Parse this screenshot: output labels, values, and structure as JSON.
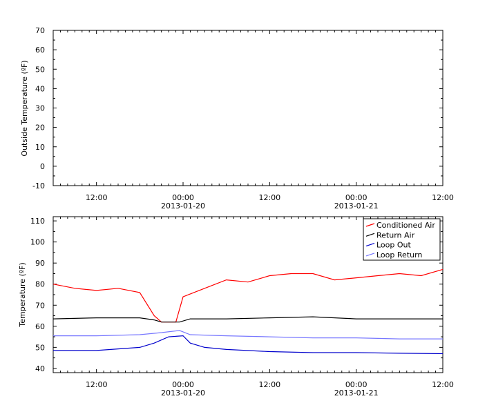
{
  "chart_data": [
    {
      "type": "line",
      "title": "",
      "xlabel": "",
      "ylabel": "Outside Temperature (ºF)",
      "ylim": [
        -10,
        70
      ],
      "yticks": [
        -10,
        0,
        10,
        20,
        30,
        40,
        50,
        60,
        70
      ],
      "xlim": [
        "2013-01-19 06:00",
        "2013-01-21 12:00"
      ],
      "xticks": [
        {
          "at": "2013-01-19 12:00",
          "label": "12:00",
          "sublabel": ""
        },
        {
          "at": "2013-01-20 00:00",
          "label": "00:00",
          "sublabel": "2013-01-20"
        },
        {
          "at": "2013-01-20 12:00",
          "label": "12:00",
          "sublabel": ""
        },
        {
          "at": "2013-01-21 00:00",
          "label": "00:00",
          "sublabel": "2013-01-21"
        },
        {
          "at": "2013-01-21 12:00",
          "label": "12:00",
          "sublabel": ""
        }
      ],
      "grid": false,
      "series": []
    },
    {
      "type": "line",
      "title": "",
      "xlabel": "",
      "ylabel": "Temperature (ºF)",
      "ylim": [
        38,
        112
      ],
      "yticks": [
        40,
        50,
        60,
        70,
        80,
        90,
        100,
        110
      ],
      "xlim": [
        "2013-01-19 06:00",
        "2013-01-21 12:00"
      ],
      "xticks": [
        {
          "at": "2013-01-19 12:00",
          "label": "12:00",
          "sublabel": ""
        },
        {
          "at": "2013-01-20 00:00",
          "label": "00:00",
          "sublabel": "2013-01-20"
        },
        {
          "at": "2013-01-20 12:00",
          "label": "12:00",
          "sublabel": ""
        },
        {
          "at": "2013-01-21 00:00",
          "label": "00:00",
          "sublabel": "2013-01-21"
        },
        {
          "at": "2013-01-21 12:00",
          "label": "12:00",
          "sublabel": ""
        }
      ],
      "grid": false,
      "legend_position": "top-right",
      "series": [
        {
          "name": "Conditioned Air",
          "color": "#ff0000",
          "points": [
            [
              "2013-01-19 06:00",
              80
            ],
            [
              "2013-01-19 09:00",
              78
            ],
            [
              "2013-01-19 12:00",
              77
            ],
            [
              "2013-01-19 15:00",
              78
            ],
            [
              "2013-01-19 18:00",
              76
            ],
            [
              "2013-01-19 20:00",
              65
            ],
            [
              "2013-01-19 21:00",
              62
            ],
            [
              "2013-01-19 23:00",
              62
            ],
            [
              "2013-01-20 00:00",
              74
            ],
            [
              "2013-01-20 03:00",
              78
            ],
            [
              "2013-01-20 06:00",
              82
            ],
            [
              "2013-01-20 09:00",
              81
            ],
            [
              "2013-01-20 12:00",
              84
            ],
            [
              "2013-01-20 15:00",
              85
            ],
            [
              "2013-01-20 18:00",
              85
            ],
            [
              "2013-01-20 21:00",
              82
            ],
            [
              "2013-01-21 00:00",
              83
            ],
            [
              "2013-01-21 03:00",
              84
            ],
            [
              "2013-01-21 06:00",
              85
            ],
            [
              "2013-01-21 09:00",
              84
            ],
            [
              "2013-01-21 12:00",
              87
            ]
          ]
        },
        {
          "name": "Return Air",
          "color": "#000000",
          "points": [
            [
              "2013-01-19 06:00",
              63.5
            ],
            [
              "2013-01-19 12:00",
              64
            ],
            [
              "2013-01-19 18:00",
              64
            ],
            [
              "2013-01-19 20:00",
              63
            ],
            [
              "2013-01-19 21:00",
              62
            ],
            [
              "2013-01-19 23:30",
              62
            ],
            [
              "2013-01-20 01:00",
              63.5
            ],
            [
              "2013-01-20 06:00",
              63.5
            ],
            [
              "2013-01-20 12:00",
              64
            ],
            [
              "2013-01-20 18:00",
              64.5
            ],
            [
              "2013-01-21 00:00",
              63.5
            ],
            [
              "2013-01-21 06:00",
              63.5
            ],
            [
              "2013-01-21 12:00",
              63.5
            ]
          ]
        },
        {
          "name": "Loop Out",
          "color": "#0000cc",
          "points": [
            [
              "2013-01-19 06:00",
              48.5
            ],
            [
              "2013-01-19 12:00",
              48.5
            ],
            [
              "2013-01-19 18:00",
              50
            ],
            [
              "2013-01-19 20:00",
              52
            ],
            [
              "2013-01-19 22:00",
              55
            ],
            [
              "2013-01-20 00:00",
              55.5
            ],
            [
              "2013-01-20 01:00",
              52
            ],
            [
              "2013-01-20 03:00",
              50
            ],
            [
              "2013-01-20 06:00",
              49
            ],
            [
              "2013-01-20 12:00",
              48
            ],
            [
              "2013-01-20 18:00",
              47.5
            ],
            [
              "2013-01-21 00:00",
              47.5
            ],
            [
              "2013-01-21 06:00",
              47.2
            ],
            [
              "2013-01-21 12:00",
              47
            ]
          ]
        },
        {
          "name": "Loop Return",
          "color": "#7777ff",
          "points": [
            [
              "2013-01-19 06:00",
              55.5
            ],
            [
              "2013-01-19 12:00",
              55.5
            ],
            [
              "2013-01-19 18:00",
              56
            ],
            [
              "2013-01-19 21:00",
              57
            ],
            [
              "2013-01-19 23:30",
              58
            ],
            [
              "2013-01-20 01:00",
              56
            ],
            [
              "2013-01-20 06:00",
              55.5
            ],
            [
              "2013-01-20 12:00",
              55
            ],
            [
              "2013-01-20 18:00",
              54.5
            ],
            [
              "2013-01-21 00:00",
              54.5
            ],
            [
              "2013-01-21 06:00",
              54
            ],
            [
              "2013-01-21 12:00",
              54
            ]
          ]
        }
      ]
    }
  ]
}
